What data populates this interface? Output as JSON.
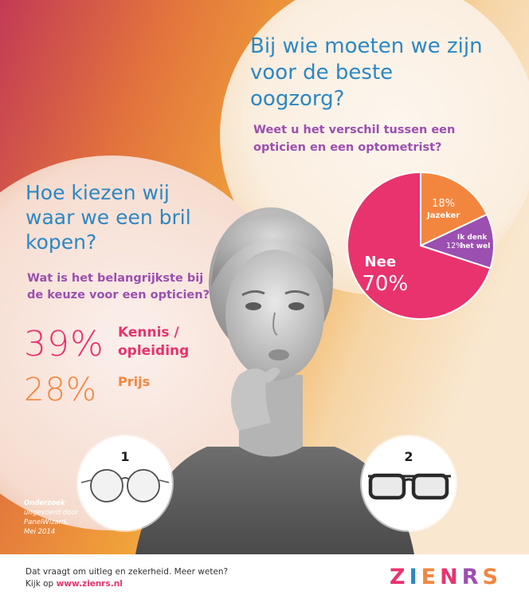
{
  "right_question": {
    "title": "Bij wie moeten we zijn voor de beste oogzorg?",
    "subtitle": "Weet u het verschil tussen een opticien en een optometrist?"
  },
  "left_question": {
    "title": "Hoe kiezen wij waar we een bril kopen?",
    "subtitle": "Wat is het belangrijkste bij de keuze voor een opticien?"
  },
  "stats": [
    {
      "value": "39%",
      "label": "Kennis / opleiding",
      "color": "#e8336e"
    },
    {
      "value": "28%",
      "label": "Prijs",
      "color": "#f3863f"
    }
  ],
  "chart_data": {
    "type": "pie",
    "slices": [
      {
        "label": "Jazeker",
        "value_text": "18%",
        "value": 18,
        "color": "#f3863f"
      },
      {
        "label": "Ik denk het wel",
        "value_text": "12%",
        "value": 12,
        "color": "#9b4fb0"
      },
      {
        "label": "Nee",
        "value_text": "70%",
        "value": 70,
        "color": "#e8336e"
      }
    ]
  },
  "glasses": [
    {
      "number": "1",
      "icon": "round-glasses-icon"
    },
    {
      "number": "2",
      "icon": "rectangular-glasses-icon"
    }
  ],
  "research": {
    "heading": "Onderzoek",
    "line1": "uitgevoerd door",
    "line2": "PanelWizard,",
    "line3": "Mei 2014"
  },
  "footer": {
    "line1": "Dat vraagt om uitleg en zekerheid. Meer weten?",
    "line2_prefix": "Kijk op ",
    "url": "www.zienrs.nl"
  },
  "logo": {
    "letters": [
      "Z",
      "I",
      "E",
      "N",
      "R",
      "S"
    ],
    "colors": [
      "#e8336e",
      "#2d87c3",
      "#f3863f",
      "#e8336e",
      "#9b4fb0",
      "#f3863f"
    ]
  }
}
